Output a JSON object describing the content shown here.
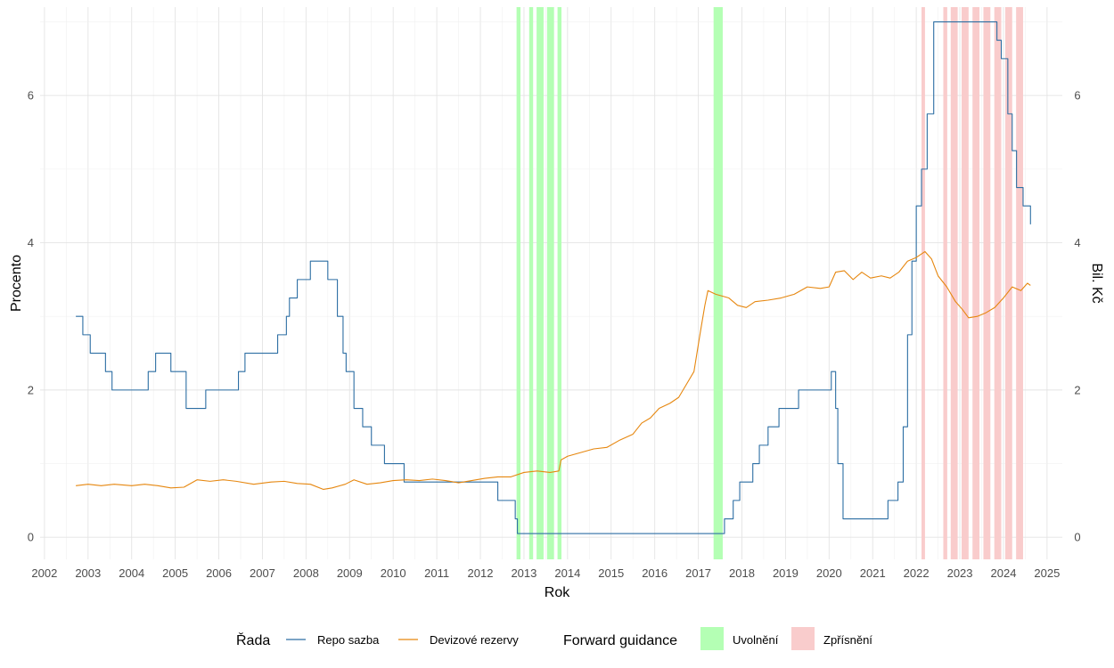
{
  "chart_data": {
    "type": "line",
    "xlabel": "Rok",
    "ylabel_left": "Procento",
    "ylabel_right": "Bil. Kč",
    "xlim": [
      2001.9,
      2025.35
    ],
    "ylim": [
      -0.3,
      7.2
    ],
    "x_ticks": [
      2002,
      2003,
      2004,
      2005,
      2006,
      2007,
      2008,
      2009,
      2010,
      2011,
      2012,
      2013,
      2014,
      2015,
      2016,
      2017,
      2018,
      2019,
      2020,
      2021,
      2022,
      2023,
      2024,
      2025
    ],
    "y_ticks": [
      0,
      2,
      4,
      6
    ],
    "y_right_ticks": [
      0,
      2,
      4,
      6
    ],
    "grid": true,
    "legend_position": "bottom",
    "series": [
      {
        "name": "Repo sazba",
        "color": "#2c6ea3",
        "step": true,
        "points": [
          [
            2002.72,
            3.0
          ],
          [
            2002.88,
            2.75
          ],
          [
            2003.05,
            2.5
          ],
          [
            2003.4,
            2.25
          ],
          [
            2003.55,
            2.0
          ],
          [
            2004.38,
            2.25
          ],
          [
            2004.55,
            2.5
          ],
          [
            2004.9,
            2.25
          ],
          [
            2005.25,
            1.75
          ],
          [
            2005.7,
            2.0
          ],
          [
            2006.45,
            2.25
          ],
          [
            2006.6,
            2.5
          ],
          [
            2007.35,
            2.75
          ],
          [
            2007.55,
            3.0
          ],
          [
            2007.62,
            3.25
          ],
          [
            2007.8,
            3.5
          ],
          [
            2008.1,
            3.75
          ],
          [
            2008.5,
            3.5
          ],
          [
            2008.72,
            3.0
          ],
          [
            2008.85,
            2.5
          ],
          [
            2008.92,
            2.25
          ],
          [
            2009.1,
            1.75
          ],
          [
            2009.3,
            1.5
          ],
          [
            2009.5,
            1.25
          ],
          [
            2009.8,
            1.0
          ],
          [
            2010.25,
            0.75
          ],
          [
            2012.4,
            0.5
          ],
          [
            2012.8,
            0.25
          ],
          [
            2012.85,
            0.05
          ],
          [
            2017.6,
            0.25
          ],
          [
            2017.8,
            0.5
          ],
          [
            2017.95,
            0.75
          ],
          [
            2018.25,
            1.0
          ],
          [
            2018.4,
            1.25
          ],
          [
            2018.6,
            1.5
          ],
          [
            2018.85,
            1.75
          ],
          [
            2019.3,
            2.0
          ],
          [
            2020.05,
            2.25
          ],
          [
            2020.15,
            1.75
          ],
          [
            2020.2,
            1.0
          ],
          [
            2020.32,
            0.25
          ],
          [
            2021.35,
            0.5
          ],
          [
            2021.58,
            0.75
          ],
          [
            2021.7,
            1.5
          ],
          [
            2021.8,
            2.75
          ],
          [
            2021.9,
            3.75
          ],
          [
            2022.0,
            4.5
          ],
          [
            2022.12,
            5.0
          ],
          [
            2022.25,
            5.75
          ],
          [
            2022.4,
            7.0
          ],
          [
            2023.85,
            6.75
          ],
          [
            2023.95,
            6.5
          ],
          [
            2024.1,
            5.75
          ],
          [
            2024.2,
            5.25
          ],
          [
            2024.3,
            4.75
          ],
          [
            2024.45,
            4.5
          ],
          [
            2024.62,
            4.25
          ]
        ]
      },
      {
        "name": "Devizové rezervy",
        "color": "#e6870f",
        "step": false,
        "points": [
          [
            2002.72,
            0.7
          ],
          [
            2003.0,
            0.72
          ],
          [
            2003.3,
            0.7
          ],
          [
            2003.6,
            0.72
          ],
          [
            2004.0,
            0.7
          ],
          [
            2004.3,
            0.72
          ],
          [
            2004.6,
            0.7
          ],
          [
            2004.9,
            0.67
          ],
          [
            2005.2,
            0.68
          ],
          [
            2005.5,
            0.78
          ],
          [
            2005.8,
            0.76
          ],
          [
            2006.1,
            0.78
          ],
          [
            2006.4,
            0.76
          ],
          [
            2006.8,
            0.72
          ],
          [
            2007.2,
            0.75
          ],
          [
            2007.5,
            0.76
          ],
          [
            2007.8,
            0.73
          ],
          [
            2008.1,
            0.72
          ],
          [
            2008.4,
            0.65
          ],
          [
            2008.6,
            0.67
          ],
          [
            2008.9,
            0.72
          ],
          [
            2009.1,
            0.78
          ],
          [
            2009.4,
            0.72
          ],
          [
            2009.7,
            0.74
          ],
          [
            2010.0,
            0.77
          ],
          [
            2010.3,
            0.78
          ],
          [
            2010.6,
            0.77
          ],
          [
            2010.9,
            0.79
          ],
          [
            2011.2,
            0.77
          ],
          [
            2011.5,
            0.74
          ],
          [
            2011.8,
            0.77
          ],
          [
            2012.1,
            0.8
          ],
          [
            2012.4,
            0.82
          ],
          [
            2012.7,
            0.82
          ],
          [
            2013.0,
            0.88
          ],
          [
            2013.3,
            0.9
          ],
          [
            2013.6,
            0.88
          ],
          [
            2013.8,
            0.9
          ],
          [
            2013.85,
            1.05
          ],
          [
            2014.0,
            1.1
          ],
          [
            2014.3,
            1.15
          ],
          [
            2014.6,
            1.2
          ],
          [
            2014.9,
            1.22
          ],
          [
            2015.2,
            1.32
          ],
          [
            2015.5,
            1.4
          ],
          [
            2015.7,
            1.55
          ],
          [
            2015.9,
            1.62
          ],
          [
            2016.1,
            1.75
          ],
          [
            2016.35,
            1.82
          ],
          [
            2016.55,
            1.9
          ],
          [
            2016.75,
            2.1
          ],
          [
            2016.9,
            2.25
          ],
          [
            2017.05,
            2.8
          ],
          [
            2017.15,
            3.15
          ],
          [
            2017.22,
            3.35
          ],
          [
            2017.4,
            3.3
          ],
          [
            2017.7,
            3.25
          ],
          [
            2017.9,
            3.15
          ],
          [
            2018.1,
            3.12
          ],
          [
            2018.3,
            3.2
          ],
          [
            2018.6,
            3.22
          ],
          [
            2018.9,
            3.25
          ],
          [
            2019.2,
            3.3
          ],
          [
            2019.5,
            3.4
          ],
          [
            2019.8,
            3.38
          ],
          [
            2020.0,
            3.4
          ],
          [
            2020.15,
            3.6
          ],
          [
            2020.35,
            3.62
          ],
          [
            2020.55,
            3.5
          ],
          [
            2020.75,
            3.6
          ],
          [
            2020.95,
            3.52
          ],
          [
            2021.2,
            3.55
          ],
          [
            2021.4,
            3.52
          ],
          [
            2021.6,
            3.6
          ],
          [
            2021.8,
            3.75
          ],
          [
            2022.0,
            3.8
          ],
          [
            2022.2,
            3.88
          ],
          [
            2022.35,
            3.78
          ],
          [
            2022.5,
            3.55
          ],
          [
            2022.7,
            3.4
          ],
          [
            2022.9,
            3.2
          ],
          [
            2023.05,
            3.1
          ],
          [
            2023.2,
            2.98
          ],
          [
            2023.4,
            3.0
          ],
          [
            2023.6,
            3.05
          ],
          [
            2023.8,
            3.12
          ],
          [
            2024.0,
            3.25
          ],
          [
            2024.2,
            3.4
          ],
          [
            2024.4,
            3.35
          ],
          [
            2024.55,
            3.45
          ],
          [
            2024.62,
            3.42
          ]
        ]
      }
    ],
    "shaded_regions": [
      {
        "x0": 2012.83,
        "x1": 2012.92,
        "category": "Uvolnění"
      },
      {
        "x0": 2013.12,
        "x1": 2013.21,
        "category": "Uvolnění"
      },
      {
        "x0": 2013.29,
        "x1": 2013.45,
        "category": "Uvolnění"
      },
      {
        "x0": 2013.53,
        "x1": 2013.69,
        "category": "Uvolnění"
      },
      {
        "x0": 2013.77,
        "x1": 2013.86,
        "category": "Uvolnění"
      },
      {
        "x0": 2017.35,
        "x1": 2017.56,
        "category": "Uvolnění"
      },
      {
        "x0": 2022.12,
        "x1": 2022.2,
        "category": "Zpřísnění"
      },
      {
        "x0": 2022.62,
        "x1": 2022.71,
        "category": "Zpřísnění"
      },
      {
        "x0": 2022.79,
        "x1": 2022.95,
        "category": "Zpřísnění"
      },
      {
        "x0": 2023.04,
        "x1": 2023.2,
        "category": "Zpřísnění"
      },
      {
        "x0": 2023.29,
        "x1": 2023.45,
        "category": "Zpřísnění"
      },
      {
        "x0": 2023.54,
        "x1": 2023.7,
        "category": "Zpřísnění"
      },
      {
        "x0": 2023.79,
        "x1": 2023.95,
        "category": "Zpřísnění"
      },
      {
        "x0": 2024.04,
        "x1": 2024.2,
        "category": "Zpřísnění"
      },
      {
        "x0": 2024.29,
        "x1": 2024.45,
        "category": "Zpřísnění"
      }
    ],
    "legend": {
      "series_title": "Řada",
      "shading_title": "Forward guidance",
      "shading_items": [
        {
          "label": "Uvolnění",
          "color": "#b4ffb4"
        },
        {
          "label": "Zpřísnění",
          "color": "#f9cccc"
        }
      ]
    }
  }
}
